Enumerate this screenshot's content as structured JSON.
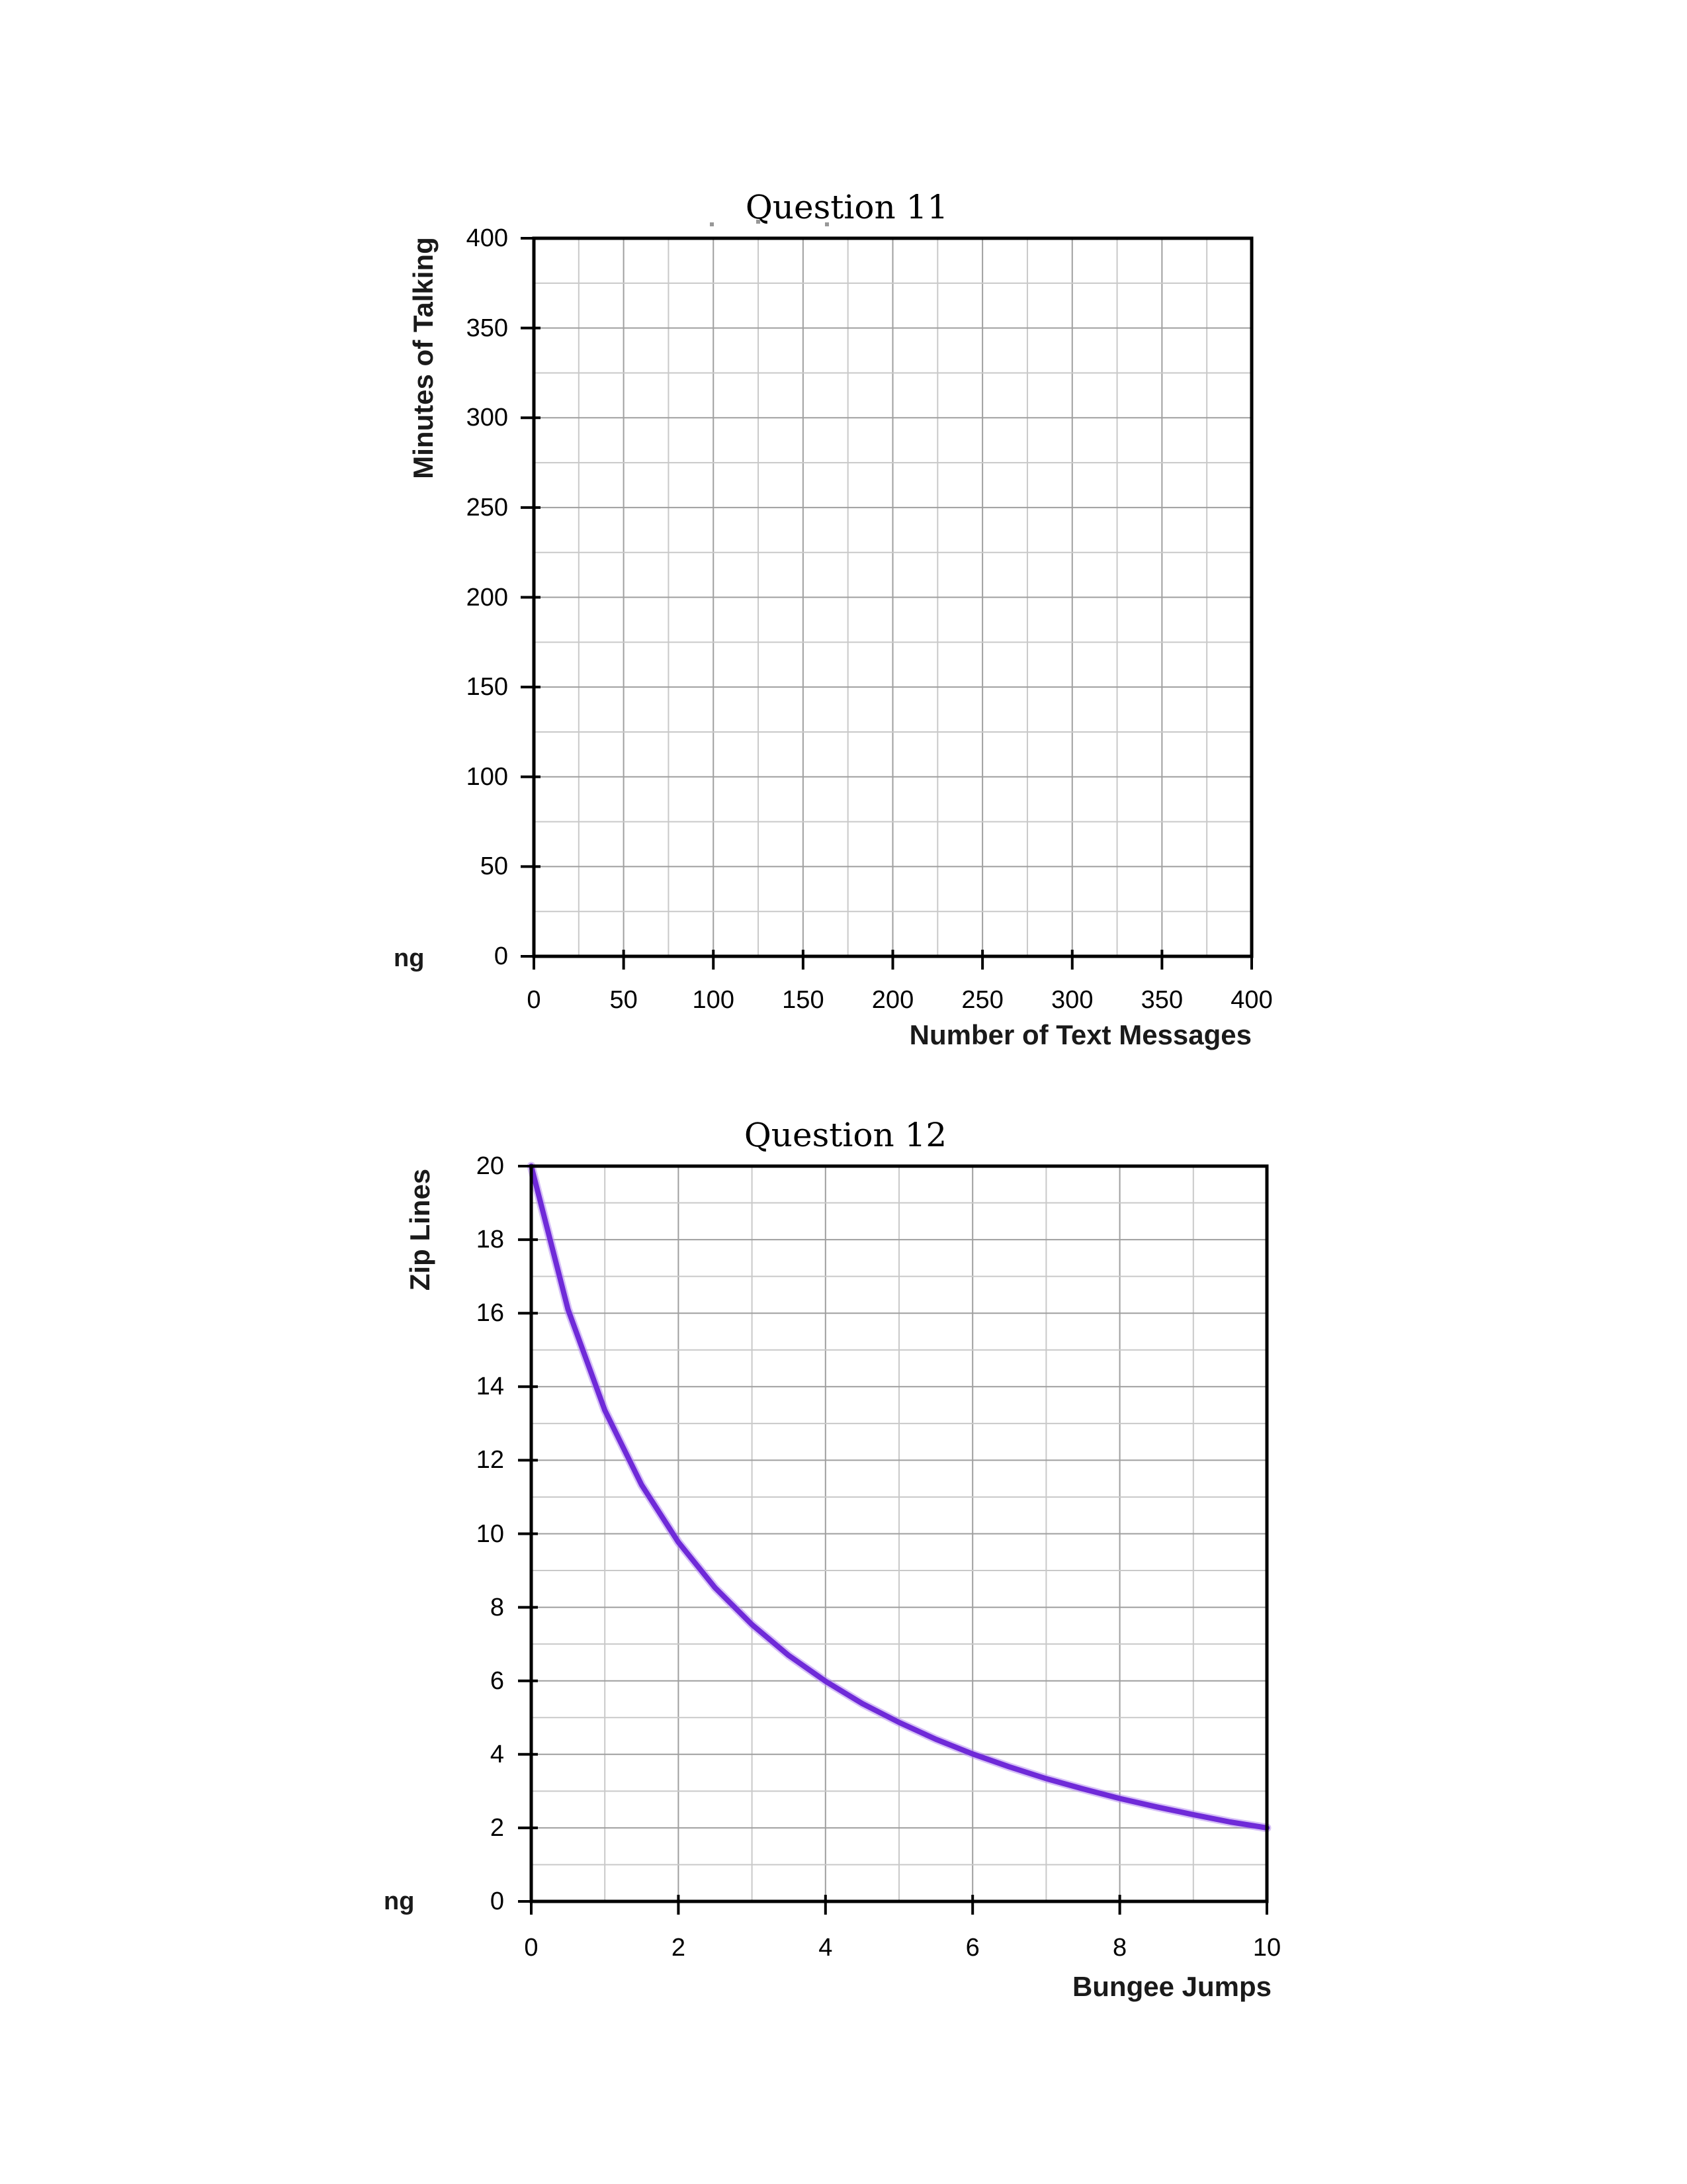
{
  "page": {
    "background_color": "#ffffff"
  },
  "style": {
    "axis_color": "#000000",
    "major_grid_color": "#9f9f9f",
    "minor_grid_color": "#c9c9c9",
    "curve_core_color": "#6f2ad8",
    "curve_halo_color": "#b48cf0"
  },
  "stray_fragments": [
    {
      "text": "ng"
    },
    {
      "text": "ng"
    }
  ],
  "chart_data": [
    {
      "id": "q11",
      "type": "line",
      "title": "Question 11",
      "xlabel": "Number of Text Messages",
      "ylabel": "Minutes of Talking",
      "xlim": [
        0,
        400
      ],
      "ylim": [
        0,
        400
      ],
      "x_major": 50,
      "x_minor": 25,
      "y_major": 50,
      "y_minor": 25,
      "grid": "on",
      "legend": "none",
      "x_tick_labels": [
        "0",
        "50",
        "100",
        "150",
        "200",
        "250",
        "300",
        "350",
        "400"
      ],
      "y_tick_labels_top_to_bottom": [
        "400",
        "350",
        "300",
        "250",
        "200",
        "150",
        "100",
        "50",
        "0"
      ],
      "series": []
    },
    {
      "id": "q12",
      "type": "line",
      "title": "Question 12",
      "xlabel": "Bungee Jumps",
      "ylabel": "Zip Lines",
      "xlim": [
        0,
        10
      ],
      "ylim": [
        0,
        20
      ],
      "x_major": 2,
      "x_minor": 1,
      "y_major": 2,
      "y_minor": 1,
      "grid": "on",
      "legend": "none",
      "x_tick_labels": [
        "0",
        "2",
        "4",
        "6",
        "8",
        "10"
      ],
      "y_tick_labels_top_to_bottom": [
        "20",
        "18",
        "16",
        "14",
        "12",
        "10",
        "8",
        "6",
        "4",
        "2",
        "0"
      ],
      "series": [
        {
          "name": "zip-lines-vs-bungee-jumps-curve",
          "color": "#6f2ad8",
          "points": [
            [
              0,
              20
            ],
            [
              0.5,
              16.1
            ],
            [
              1,
              13.36
            ],
            [
              1.5,
              11.33
            ],
            [
              2,
              9.77
            ],
            [
              2.5,
              8.53
            ],
            [
              3,
              7.53
            ],
            [
              3.5,
              6.69
            ],
            [
              4,
              5.99
            ],
            [
              4.5,
              5.38
            ],
            [
              5,
              4.87
            ],
            [
              5.5,
              4.41
            ],
            [
              6,
              4.01
            ],
            [
              6.5,
              3.66
            ],
            [
              7,
              3.34
            ],
            [
              7.5,
              3.06
            ],
            [
              8,
              2.8
            ],
            [
              8.5,
              2.57
            ],
            [
              9,
              2.36
            ],
            [
              9.5,
              2.16
            ],
            [
              10,
              2
            ]
          ]
        }
      ]
    }
  ]
}
